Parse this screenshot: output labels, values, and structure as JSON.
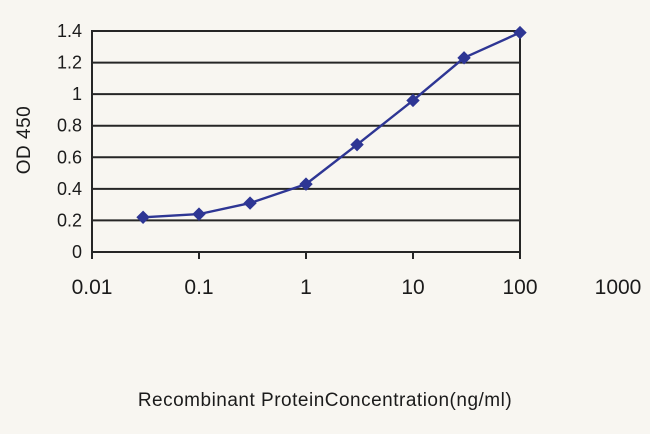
{
  "chart_data": {
    "type": "line",
    "title": "",
    "xlabel": "Recombinant ProteinConcentration(ng/ml)",
    "ylabel": "OD 450",
    "x_scale": "log",
    "x": [
      0.03,
      0.1,
      0.3,
      1,
      3,
      10,
      30,
      100
    ],
    "series": [
      {
        "name": "OD 450",
        "values": [
          0.22,
          0.24,
          0.31,
          0.43,
          0.68,
          0.96,
          1.23,
          1.39
        ]
      }
    ],
    "x_ticks": [
      0.01,
      0.1,
      1,
      10,
      100,
      1000
    ],
    "x_tick_labels": [
      "0.01",
      "0.1",
      "1",
      "10",
      "100",
      "1000"
    ],
    "y_ticks": [
      0,
      0.2,
      0.4,
      0.6,
      0.8,
      1,
      1.2,
      1.4
    ],
    "y_tick_labels": [
      "0",
      "0.2",
      "0.4",
      "0.6",
      "0.8",
      "1",
      "1.2",
      "1.4"
    ],
    "xlim_box": [
      0.01,
      100
    ],
    "ylim": [
      0,
      1.4
    ],
    "grid": "horizontal",
    "legend": "none",
    "colors": {
      "line": "#2e3694",
      "marker": "#2e3694",
      "axis": "#262626",
      "text": "#1b1b1b",
      "background": "#f8f6f1"
    },
    "marker": "diamond"
  }
}
